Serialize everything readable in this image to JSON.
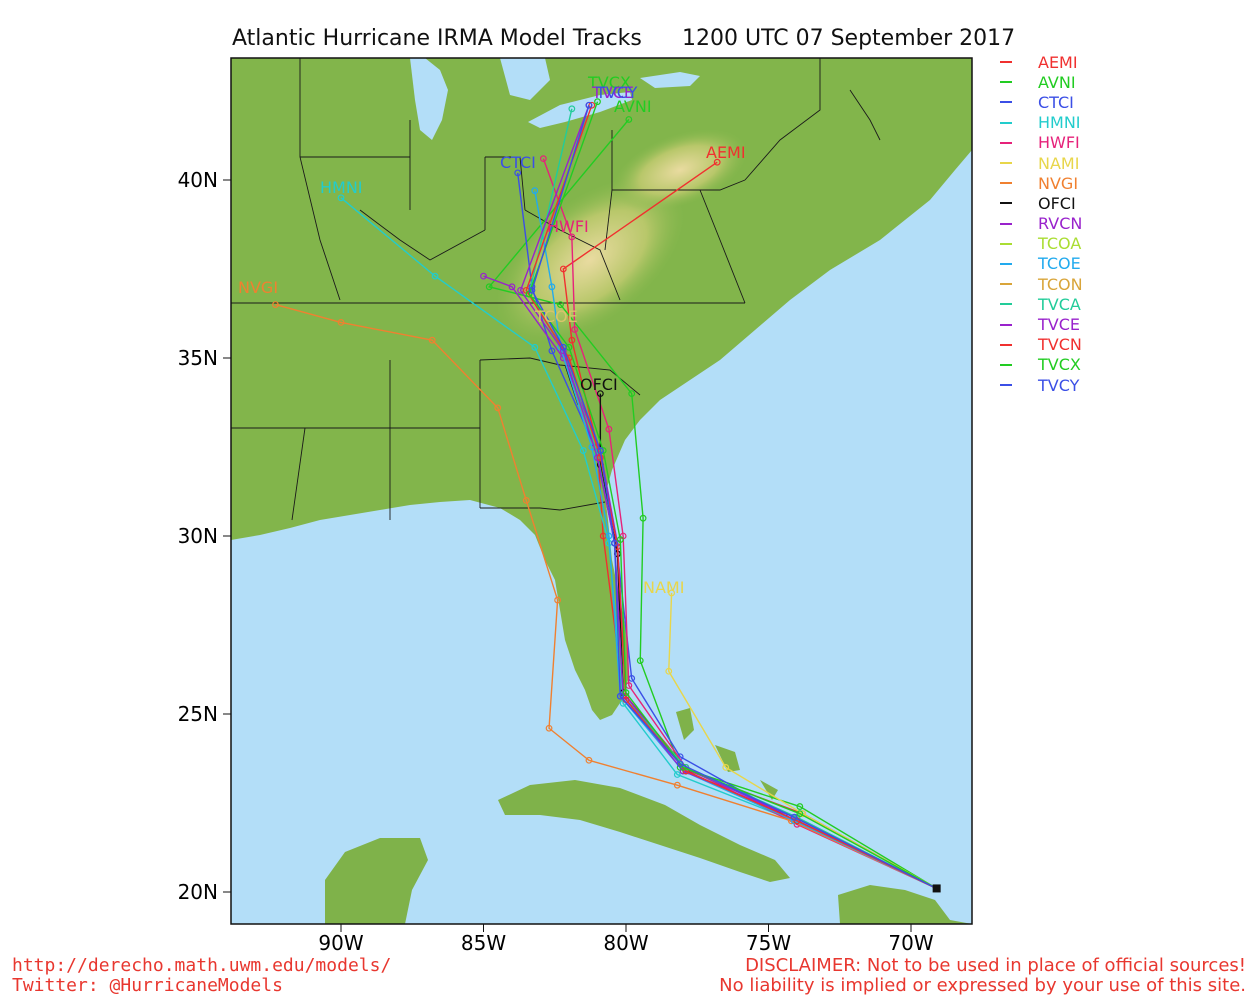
{
  "title_left": "Atlantic Hurricane IRMA Model Tracks",
  "title_right": "1200 UTC 07 September 2017",
  "axes": {
    "lat_labels": [
      "20N",
      "25N",
      "30N",
      "35N",
      "40N"
    ],
    "lon_labels": [
      "90W",
      "85W",
      "80W",
      "75W",
      "70W"
    ]
  },
  "colors": {
    "ocean": "#b3def8",
    "land_low": "#7fb24a",
    "land_high": "#e8d79a",
    "border": "#1a1a1a"
  },
  "legend": [
    {
      "name": "AEMI",
      "color": "#f0302f"
    },
    {
      "name": "AVNI",
      "color": "#22cc22"
    },
    {
      "name": "CTCI",
      "color": "#3b4fe6"
    },
    {
      "name": "HMNI",
      "color": "#22cccc"
    },
    {
      "name": "HWFI",
      "color": "#e6227a"
    },
    {
      "name": "NAMI",
      "color": "#e8d64a"
    },
    {
      "name": "NVGI",
      "color": "#f08030"
    },
    {
      "name": "OFCI",
      "color": "#111111"
    },
    {
      "name": "RVCN",
      "color": "#9922cc"
    },
    {
      "name": "TCOA",
      "color": "#aadd33"
    },
    {
      "name": "TCOE",
      "color": "#22aaee"
    },
    {
      "name": "TCON",
      "color": "#d9a53a"
    },
    {
      "name": "TVCA",
      "color": "#22cc99"
    },
    {
      "name": "TVCE",
      "color": "#9922cc"
    },
    {
      "name": "TVCN",
      "color": "#f0302f"
    },
    {
      "name": "TVCX",
      "color": "#22cc22"
    },
    {
      "name": "TVCY",
      "color": "#3b4fe6"
    }
  ],
  "track_labels": {
    "aemi": "AEMI",
    "ctci": "CTCI",
    "hmni": "HMNI",
    "hwfi": "HWFI",
    "nvgi": "NVGI",
    "ofci": "OFCI",
    "nami": "NAMI",
    "tvcy": "TVCY",
    "tvce": "TVCE",
    "tvcn": "TVCN",
    "tvcx": "TVCX",
    "avni": "AVNI",
    "tcoe": "TCOE"
  },
  "chart_data": {
    "type": "scatter",
    "title": "Atlantic Hurricane IRMA Model Tracks",
    "subtitle": "1200 UTC 07 September 2017",
    "xlim_lon": [
      -93.5,
      -68.5
    ],
    "ylim_lat": [
      19.2,
      43.4
    ],
    "series": [
      {
        "name": "AEMI",
        "points": [
          [
            -69.1,
            20.1
          ],
          [
            -73.8,
            22.2
          ],
          [
            -77.8,
            23.4
          ],
          [
            -80.1,
            25.6
          ],
          [
            -80.8,
            30.0
          ],
          [
            -81.0,
            32.5
          ],
          [
            -81.9,
            35.5
          ],
          [
            -82.2,
            37.5
          ],
          [
            -76.8,
            40.5
          ]
        ]
      },
      {
        "name": "AVNI",
        "points": [
          [
            -69.1,
            20.1
          ],
          [
            -73.9,
            22.4
          ],
          [
            -78.1,
            23.5
          ],
          [
            -79.5,
            26.5
          ],
          [
            -79.4,
            30.5
          ],
          [
            -79.8,
            34.0
          ],
          [
            -82.3,
            36.5
          ],
          [
            -84.8,
            37.0
          ],
          [
            -79.9,
            41.7
          ]
        ]
      },
      {
        "name": "CTCI",
        "points": [
          [
            -69.1,
            20.1
          ],
          [
            -74.3,
            22.1
          ],
          [
            -78.1,
            23.8
          ],
          [
            -79.8,
            26.0
          ],
          [
            -80.3,
            29.5
          ],
          [
            -81.1,
            32.5
          ],
          [
            -82.6,
            35.2
          ],
          [
            -83.3,
            37.0
          ],
          [
            -83.8,
            40.2
          ]
        ]
      },
      {
        "name": "HMNI",
        "points": [
          [
            -69.1,
            20.1
          ],
          [
            -74.1,
            22.0
          ],
          [
            -78.2,
            23.3
          ],
          [
            -80.1,
            25.3
          ],
          [
            -80.6,
            29.8
          ],
          [
            -81.5,
            32.4
          ],
          [
            -83.2,
            35.3
          ],
          [
            -86.7,
            37.3
          ],
          [
            -90.0,
            39.5
          ]
        ]
      },
      {
        "name": "HWFI",
        "points": [
          [
            -69.1,
            20.1
          ],
          [
            -74.0,
            21.9
          ],
          [
            -77.9,
            23.5
          ],
          [
            -79.9,
            25.8
          ],
          [
            -80.1,
            30.0
          ],
          [
            -80.6,
            33.0
          ],
          [
            -81.8,
            35.8
          ],
          [
            -81.9,
            38.4
          ],
          [
            -82.9,
            40.6
          ]
        ]
      },
      {
        "name": "NAMI",
        "points": [
          [
            -69.1,
            20.1
          ],
          [
            -73.8,
            22.2
          ],
          [
            -76.5,
            23.5
          ],
          [
            -78.5,
            26.2
          ],
          [
            -78.4,
            28.4
          ]
        ]
      },
      {
        "name": "NVGI",
        "points": [
          [
            -69.1,
            20.1
          ],
          [
            -74.2,
            22.0
          ],
          [
            -78.2,
            23.0
          ],
          [
            -81.3,
            23.7
          ],
          [
            -82.7,
            24.6
          ],
          [
            -82.4,
            28.2
          ],
          [
            -83.5,
            31.0
          ],
          [
            -84.5,
            33.6
          ],
          [
            -86.8,
            35.5
          ],
          [
            -90.0,
            36.0
          ],
          [
            -92.3,
            36.5
          ]
        ]
      },
      {
        "name": "OFCI",
        "points": [
          [
            -69.1,
            20.1
          ],
          [
            -74.0,
            22.0
          ],
          [
            -77.9,
            23.4
          ],
          [
            -80.1,
            25.6
          ],
          [
            -80.3,
            29.5
          ],
          [
            -80.9,
            32.0
          ],
          [
            -80.9,
            34.0
          ]
        ]
      },
      {
        "name": "RVCN",
        "points": [
          [
            -69.1,
            20.1
          ],
          [
            -74.1,
            22.1
          ],
          [
            -78.0,
            23.5
          ],
          [
            -80.0,
            25.5
          ],
          [
            -80.3,
            29.8
          ],
          [
            -80.9,
            32.4
          ],
          [
            -82.2,
            35.0
          ],
          [
            -84.0,
            37.0
          ],
          [
            -85.0,
            37.3
          ]
        ]
      },
      {
        "name": "TCOE",
        "points": [
          [
            -69.1,
            20.1
          ],
          [
            -74.1,
            22.0
          ],
          [
            -78.0,
            23.4
          ],
          [
            -80.2,
            25.5
          ],
          [
            -80.6,
            30.0
          ],
          [
            -81.2,
            32.5
          ],
          [
            -82.3,
            35.3
          ],
          [
            -82.6,
            37.0
          ],
          [
            -83.2,
            39.7
          ]
        ]
      },
      {
        "name": "TVCA",
        "points": [
          [
            -69.1,
            20.1
          ],
          [
            -74.0,
            22.1
          ],
          [
            -77.9,
            23.5
          ],
          [
            -80.1,
            25.5
          ],
          [
            -80.4,
            29.8
          ],
          [
            -81.0,
            32.3
          ],
          [
            -82.2,
            35.2
          ],
          [
            -83.4,
            36.8
          ],
          [
            -81.9,
            42.0
          ]
        ]
      },
      {
        "name": "TVCE",
        "points": [
          [
            -69.1,
            20.1
          ],
          [
            -74.1,
            22.1
          ],
          [
            -78.0,
            23.4
          ],
          [
            -80.1,
            25.5
          ],
          [
            -80.4,
            29.8
          ],
          [
            -81.0,
            32.2
          ],
          [
            -82.2,
            35.2
          ],
          [
            -83.7,
            36.9
          ],
          [
            -81.3,
            42.1
          ]
        ]
      },
      {
        "name": "TVCN",
        "points": [
          [
            -69.1,
            20.1
          ],
          [
            -74.0,
            22.0
          ],
          [
            -77.9,
            23.4
          ],
          [
            -80.0,
            25.4
          ],
          [
            -80.3,
            29.7
          ],
          [
            -80.9,
            32.2
          ],
          [
            -82.0,
            35.0
          ],
          [
            -83.5,
            36.9
          ],
          [
            -81.2,
            42.1
          ]
        ]
      },
      {
        "name": "TVCX",
        "points": [
          [
            -69.1,
            20.1
          ],
          [
            -73.9,
            22.2
          ],
          [
            -78.0,
            23.5
          ],
          [
            -80.0,
            25.6
          ],
          [
            -80.2,
            29.9
          ],
          [
            -80.8,
            32.4
          ],
          [
            -82.0,
            35.3
          ],
          [
            -83.4,
            36.8
          ],
          [
            -81.0,
            42.2
          ]
        ]
      },
      {
        "name": "TVCY",
        "points": [
          [
            -69.1,
            20.1
          ],
          [
            -74.1,
            22.1
          ],
          [
            -78.1,
            23.6
          ],
          [
            -80.2,
            25.5
          ],
          [
            -80.4,
            29.8
          ],
          [
            -80.9,
            32.4
          ],
          [
            -82.2,
            35.3
          ],
          [
            -83.3,
            36.9
          ],
          [
            -81.3,
            42.1
          ]
        ]
      }
    ]
  }
}
